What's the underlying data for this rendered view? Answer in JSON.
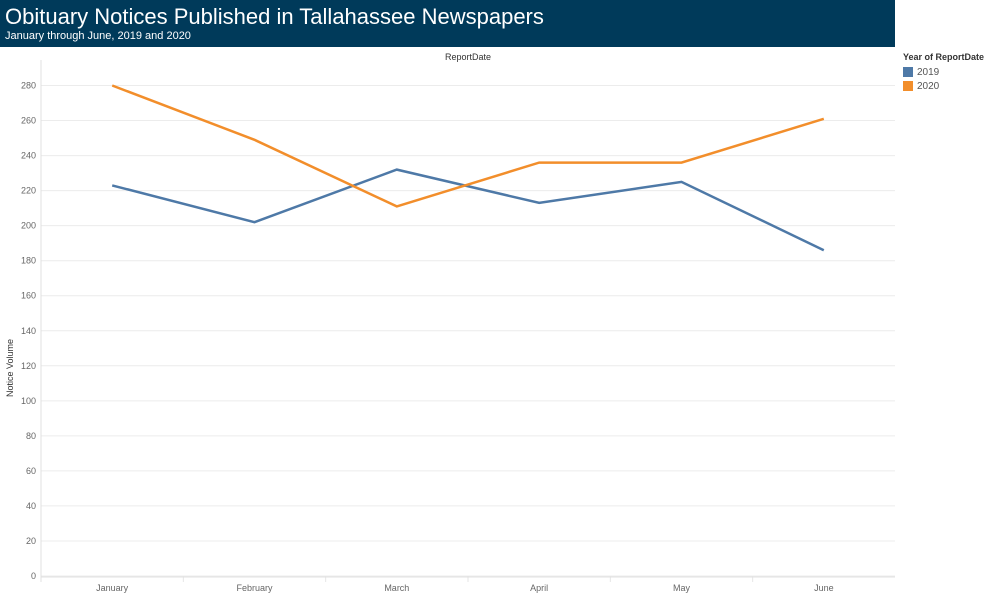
{
  "header": {
    "title": "Obituary Notices Published in Tallahassee Newspapers",
    "subtitle": "January through June, 2019 and 2020"
  },
  "legend": {
    "title": "Year of ReportDate",
    "items": [
      {
        "label": "2019",
        "color": "#4e79a7"
      },
      {
        "label": "2020",
        "color": "#f28e2b"
      }
    ]
  },
  "chart_data": {
    "type": "line",
    "title": "Obituary Notices Published in Tallahassee Newspapers",
    "subtitle": "January through June, 2019 and 2020",
    "xlabel": "ReportDate",
    "ylabel": "Notice Volume",
    "categories": [
      "January",
      "February",
      "March",
      "April",
      "May",
      "June"
    ],
    "ylim": [
      0,
      290
    ],
    "yticks": [
      0,
      20,
      40,
      60,
      80,
      100,
      120,
      140,
      160,
      180,
      200,
      220,
      240,
      260,
      280
    ],
    "grid": true,
    "legend_position": "right",
    "series": [
      {
        "name": "2019",
        "color": "#4e79a7",
        "values": [
          223,
          202,
          232,
          213,
          225,
          186
        ]
      },
      {
        "name": "2020",
        "color": "#f28e2b",
        "values": [
          280,
          249,
          211,
          236,
          236,
          261
        ]
      }
    ]
  }
}
